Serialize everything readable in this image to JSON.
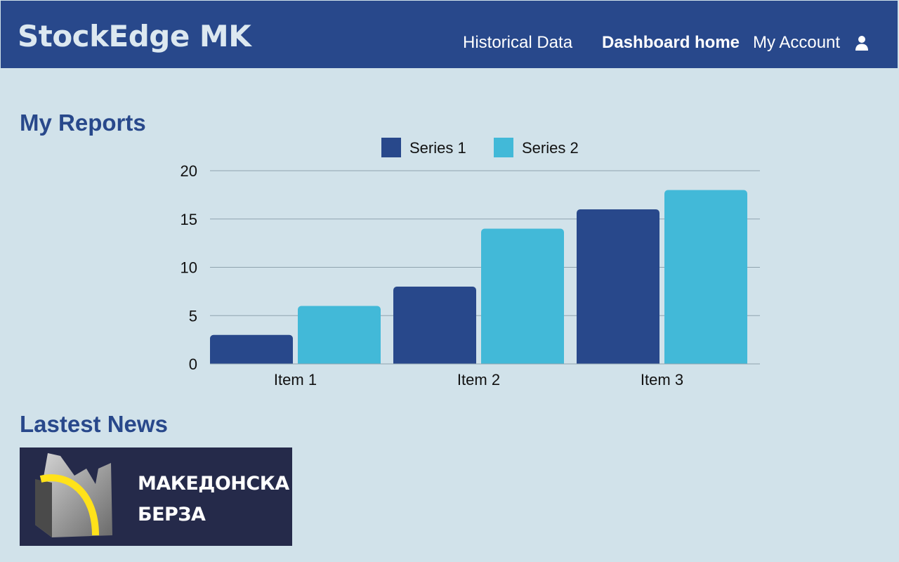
{
  "header": {
    "brand": "StockEdge MK",
    "nav": {
      "historical": "Historical Data",
      "dashboard": "Dashboard home",
      "account": "My Account"
    },
    "account_icon": "user-icon"
  },
  "reports": {
    "title": "My Reports"
  },
  "news": {
    "title": "Lastest News",
    "banner_line1": "МАКЕДОНСКА",
    "banner_line2": "БЕРЗА"
  },
  "colors": {
    "header_bg": "#28488b",
    "page_bg": "#d1e2ea",
    "series1": "#28488b",
    "series2": "#42b9d8"
  },
  "chart_data": {
    "type": "bar",
    "categories": [
      "Item 1",
      "Item 2",
      "Item 3"
    ],
    "series": [
      {
        "name": "Series 1",
        "values": [
          3,
          8,
          16
        ]
      },
      {
        "name": "Series 2",
        "values": [
          6,
          14,
          18
        ]
      }
    ],
    "yticks": [
      0,
      5,
      10,
      15,
      20
    ],
    "ylim": [
      0,
      20
    ],
    "grid": true,
    "legend": "top-center"
  }
}
